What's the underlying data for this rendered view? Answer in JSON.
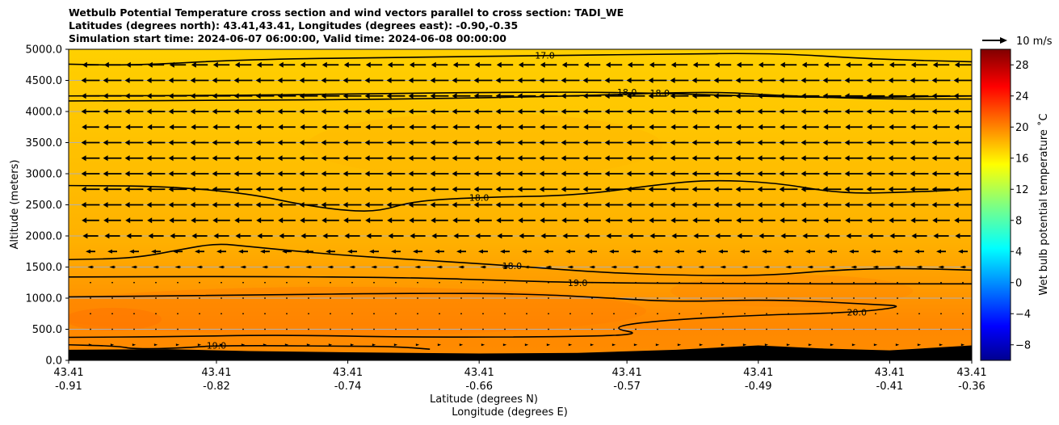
{
  "chart_data": {
    "type": "cross-section",
    "title_lines": [
      "Wetbulb Potential Temperature cross section and wind vectors parallel to cross section: TADI_WE",
      "Latitudes (degrees north): 43.41,43.41, Longitudes (degrees east): -0.90,-0.35",
      "Simulation start time: 2024-06-07 06:00:00, Valid time: 2024-06-08 00:00:00"
    ],
    "ylabel": "Altitude (meters)",
    "xlabel_lat": "Latitude (degrees N)",
    "xlabel_lon": "Longitude (degrees E)",
    "ylim": [
      0,
      5000
    ],
    "y_ticks": [
      "0.0",
      "500.0",
      "1000.0",
      "1500.0",
      "2000.0",
      "2500.0",
      "3000.0",
      "3500.0",
      "4000.0",
      "4500.0",
      "5000.0"
    ],
    "y_tick_values": [
      0,
      500,
      1000,
      1500,
      2000,
      2500,
      3000,
      3500,
      4000,
      4500,
      5000
    ],
    "x_range": [
      -0.91,
      -0.36
    ],
    "x_ticks": [
      {
        "lat": "43.41",
        "lon": "-0.91",
        "pos": -0.91
      },
      {
        "lat": "43.41",
        "lon": "-0.82",
        "pos": -0.82
      },
      {
        "lat": "43.41",
        "lon": "-0.74",
        "pos": -0.74
      },
      {
        "lat": "43.41",
        "lon": "-0.66",
        "pos": -0.66
      },
      {
        "lat": "43.41",
        "lon": "-0.57",
        "pos": -0.57
      },
      {
        "lat": "43.41",
        "lon": "-0.49",
        "pos": -0.49
      },
      {
        "lat": "43.41",
        "lon": "-0.41",
        "pos": -0.41
      },
      {
        "lat": "43.41",
        "lon": "-0.36",
        "pos": -0.36
      }
    ],
    "colorbar": {
      "label": "Wet bulb potential temperature ˚C",
      "range": [
        -10,
        30
      ],
      "ticks": [
        "−8",
        "−4",
        "0",
        "4",
        "8",
        "12",
        "16",
        "20",
        "24",
        "28"
      ],
      "tick_values": [
        -8,
        -4,
        0,
        4,
        8,
        12,
        16,
        20,
        24,
        28
      ]
    },
    "quiver_key": "10 m/s",
    "contours": [
      {
        "label": "17.0",
        "points": [
          [
            -0.91,
            4760
          ],
          [
            -0.87,
            4740
          ],
          [
            -0.8,
            4840
          ],
          [
            -0.7,
            4870
          ],
          [
            -0.62,
            4900
          ],
          [
            -0.55,
            4920
          ],
          [
            -0.48,
            4940
          ],
          [
            -0.42,
            4840
          ],
          [
            -0.36,
            4800
          ]
        ]
      },
      {
        "label": "18.0",
        "points": [
          [
            -0.91,
            4250
          ],
          [
            -0.8,
            4260
          ],
          [
            -0.72,
            4290
          ],
          [
            -0.64,
            4310
          ],
          [
            -0.57,
            4310
          ],
          [
            -0.5,
            4250
          ],
          [
            -0.44,
            4220
          ],
          [
            -0.36,
            4250
          ]
        ]
      },
      {
        "label": "18.0",
        "points": [
          [
            -0.91,
            4170
          ],
          [
            -0.8,
            4180
          ],
          [
            -0.7,
            4200
          ],
          [
            -0.6,
            4250
          ],
          [
            -0.55,
            4300
          ],
          [
            -0.51,
            4310
          ],
          [
            -0.48,
            4260
          ],
          [
            -0.42,
            4200
          ],
          [
            -0.36,
            4200
          ]
        ]
      },
      {
        "label": "18.0",
        "points": [
          [
            -0.91,
            2810
          ],
          [
            -0.85,
            2800
          ],
          [
            -0.8,
            2680
          ],
          [
            -0.77,
            2510
          ],
          [
            -0.74,
            2400
          ],
          [
            -0.72,
            2400
          ],
          [
            -0.7,
            2560
          ],
          [
            -0.66,
            2620
          ],
          [
            -0.6,
            2650
          ],
          [
            -0.55,
            2830
          ],
          [
            -0.52,
            2900
          ],
          [
            -0.48,
            2860
          ],
          [
            -0.44,
            2680
          ],
          [
            -0.4,
            2700
          ],
          [
            -0.36,
            2750
          ]
        ]
      },
      {
        "label": "18.0",
        "points": [
          [
            -0.91,
            1620
          ],
          [
            -0.87,
            1640
          ],
          [
            -0.84,
            1790
          ],
          [
            -0.82,
            1880
          ],
          [
            -0.8,
            1830
          ],
          [
            -0.75,
            1700
          ],
          [
            -0.7,
            1620
          ],
          [
            -0.64,
            1520
          ],
          [
            -0.58,
            1400
          ],
          [
            -0.52,
            1360
          ],
          [
            -0.48,
            1370
          ],
          [
            -0.44,
            1460
          ],
          [
            -0.4,
            1480
          ],
          [
            -0.36,
            1450
          ]
        ]
      },
      {
        "label": "19.0",
        "points": [
          [
            -0.91,
            1340
          ],
          [
            -0.8,
            1350
          ],
          [
            -0.7,
            1330
          ],
          [
            -0.64,
            1280
          ],
          [
            -0.6,
            1250
          ],
          [
            -0.5,
            1230
          ],
          [
            -0.4,
            1230
          ],
          [
            -0.36,
            1230
          ]
        ]
      },
      {
        "label": "20.0",
        "points": [
          [
            -0.91,
            1020
          ],
          [
            -0.8,
            1050
          ],
          [
            -0.7,
            1080
          ],
          [
            -0.63,
            1070
          ],
          [
            -0.58,
            1000
          ],
          [
            -0.54,
            940
          ],
          [
            -0.48,
            980
          ],
          [
            -0.42,
            900
          ],
          [
            -0.4,
            870
          ],
          [
            -0.43,
            770
          ],
          [
            -0.5,
            720
          ],
          [
            -0.56,
            620
          ],
          [
            -0.58,
            520
          ],
          [
            -0.56,
            420
          ],
          [
            -0.6,
            380
          ],
          [
            -0.7,
            370
          ],
          [
            -0.78,
            410
          ],
          [
            -0.85,
            380
          ],
          [
            -0.91,
            370
          ]
        ]
      },
      {
        "label": "19.0",
        "points": [
          [
            -0.91,
            250
          ],
          [
            -0.88,
            230
          ],
          [
            -0.87,
            180
          ],
          [
            -0.84,
            200
          ],
          [
            -0.82,
            240
          ],
          [
            -0.74,
            230
          ],
          [
            -0.71,
            220
          ],
          [
            -0.69,
            180
          ]
        ]
      }
    ],
    "terrain": [
      [
        -0.91,
        170
      ],
      [
        -0.85,
        180
      ],
      [
        -0.8,
        150
      ],
      [
        -0.74,
        130
      ],
      [
        -0.66,
        110
      ],
      [
        -0.6,
        120
      ],
      [
        -0.54,
        170
      ],
      [
        -0.49,
        240
      ],
      [
        -0.45,
        190
      ],
      [
        -0.41,
        160
      ],
      [
        -0.36,
        240
      ]
    ],
    "wind_rows": [
      {
        "alt": 4750,
        "u": -8.5
      },
      {
        "alt": 4500,
        "u": -9.5
      },
      {
        "alt": 4250,
        "u": -9.5
      },
      {
        "alt": 4000,
        "u": -9.5
      },
      {
        "alt": 3750,
        "u": -9
      },
      {
        "alt": 3500,
        "u": -9.5
      },
      {
        "alt": 3250,
        "u": -9.5
      },
      {
        "alt": 3000,
        "u": -9.5
      },
      {
        "alt": 2750,
        "u": -9.5
      },
      {
        "alt": 2500,
        "u": -9.5
      },
      {
        "alt": 2250,
        "u": -9
      },
      {
        "alt": 2000,
        "u": -8
      },
      {
        "alt": 1750,
        "u": -5
      },
      {
        "alt": 1500,
        "u": -3
      },
      {
        "alt": 1250,
        "u": -1
      },
      {
        "alt": 1000,
        "u": 0.6
      },
      {
        "alt": 750,
        "u": 0.6
      },
      {
        "alt": 500,
        "u": 0.8
      },
      {
        "alt": 250,
        "u": 1.8
      }
    ]
  }
}
